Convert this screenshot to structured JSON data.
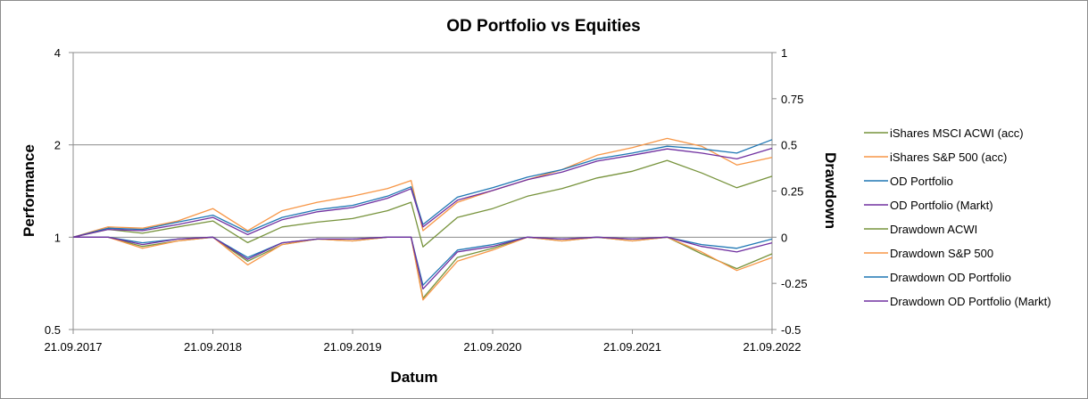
{
  "chart_data": {
    "type": "line",
    "title": "OD Portfolio vs Equities",
    "xlabel": "Datum",
    "ylabel": "Performance",
    "y2label": "Drawdown",
    "y_scale": "log",
    "ylim": [
      0.5,
      4
    ],
    "y_ticks": [
      "0.5",
      "1",
      "2",
      "4"
    ],
    "y2lim": [
      -0.5,
      1
    ],
    "y2_ticks": [
      "-0.5",
      "-0.25",
      "0",
      "0.25",
      "0.5",
      "0.75",
      "1"
    ],
    "x_ticks": [
      "21.09.2017",
      "21.09.2018",
      "21.09.2019",
      "21.09.2020",
      "21.09.2021",
      "21.09.2022"
    ],
    "gridlines": "horizontal at major performance ticks",
    "legend_position": "right",
    "series": [
      {
        "name": "iShares MSCI ACWI (acc)",
        "axis": "Performance",
        "color": "#77933c",
        "x": [
          "21.09.2017",
          "21.12.2017",
          "21.03.2018",
          "21.06.2018",
          "21.09.2018",
          "21.12.2018",
          "21.03.2019",
          "21.06.2019",
          "21.09.2019",
          "21.12.2019",
          "21.02.2020",
          "23.03.2020",
          "21.06.2020",
          "21.09.2020",
          "21.12.2020",
          "21.03.2021",
          "21.06.2021",
          "21.09.2021",
          "21.12.2021",
          "21.03.2022",
          "21.06.2022",
          "21.09.2022"
        ],
        "y": [
          1.0,
          1.06,
          1.03,
          1.08,
          1.13,
          0.96,
          1.08,
          1.12,
          1.15,
          1.22,
          1.3,
          0.93,
          1.16,
          1.24,
          1.36,
          1.44,
          1.56,
          1.64,
          1.78,
          1.62,
          1.45,
          1.58
        ]
      },
      {
        "name": "iShares S&P 500 (acc)",
        "axis": "Performance",
        "color": "#f79646",
        "x": [
          "21.09.2017",
          "21.12.2017",
          "21.03.2018",
          "21.06.2018",
          "21.09.2018",
          "21.12.2018",
          "21.03.2019",
          "21.06.2019",
          "21.09.2019",
          "21.12.2019",
          "21.02.2020",
          "23.03.2020",
          "21.06.2020",
          "21.09.2020",
          "21.12.2020",
          "21.03.2021",
          "21.06.2021",
          "21.09.2021",
          "21.12.2021",
          "21.03.2022",
          "21.06.2022",
          "21.09.2022"
        ],
        "y": [
          1.0,
          1.08,
          1.07,
          1.13,
          1.24,
          1.05,
          1.22,
          1.3,
          1.36,
          1.44,
          1.53,
          1.05,
          1.3,
          1.42,
          1.54,
          1.66,
          1.85,
          1.96,
          2.1,
          1.98,
          1.72,
          1.82
        ]
      },
      {
        "name": "OD Portfolio",
        "axis": "Performance",
        "color": "#1f77b4",
        "x": [
          "21.09.2017",
          "21.12.2017",
          "21.03.2018",
          "21.06.2018",
          "21.09.2018",
          "21.12.2018",
          "21.03.2019",
          "21.06.2019",
          "21.09.2019",
          "21.12.2019",
          "21.02.2020",
          "23.03.2020",
          "21.06.2020",
          "21.09.2020",
          "21.12.2020",
          "21.03.2021",
          "21.06.2021",
          "21.09.2021",
          "21.12.2021",
          "21.03.2022",
          "21.06.2022",
          "21.09.2022"
        ],
        "y": [
          1.0,
          1.07,
          1.06,
          1.12,
          1.18,
          1.04,
          1.16,
          1.23,
          1.27,
          1.36,
          1.46,
          1.1,
          1.35,
          1.45,
          1.57,
          1.66,
          1.8,
          1.88,
          1.98,
          1.94,
          1.88,
          2.08
        ]
      },
      {
        "name": "OD Portfolio (Markt)",
        "axis": "Performance",
        "color": "#7030a0",
        "x": [
          "21.09.2017",
          "21.12.2017",
          "21.03.2018",
          "21.06.2018",
          "21.09.2018",
          "21.12.2018",
          "21.03.2019",
          "21.06.2019",
          "21.09.2019",
          "21.12.2019",
          "21.02.2020",
          "23.03.2020",
          "21.06.2020",
          "21.09.2020",
          "21.12.2020",
          "21.03.2021",
          "21.06.2021",
          "21.09.2021",
          "21.12.2021",
          "21.03.2022",
          "21.06.2022",
          "21.09.2022"
        ],
        "y": [
          1.0,
          1.06,
          1.05,
          1.1,
          1.16,
          1.02,
          1.14,
          1.21,
          1.25,
          1.34,
          1.44,
          1.08,
          1.32,
          1.42,
          1.54,
          1.63,
          1.77,
          1.85,
          1.94,
          1.88,
          1.8,
          1.95
        ]
      },
      {
        "name": "Drawdown ACWI",
        "axis": "Drawdown",
        "color": "#77933c",
        "x": [
          "21.09.2017",
          "21.12.2017",
          "21.03.2018",
          "21.06.2018",
          "21.09.2018",
          "21.12.2018",
          "21.03.2019",
          "21.06.2019",
          "21.09.2019",
          "21.12.2019",
          "21.02.2020",
          "23.03.2020",
          "21.06.2020",
          "21.09.2020",
          "21.12.2020",
          "21.03.2021",
          "21.06.2021",
          "21.09.2021",
          "21.12.2021",
          "21.03.2022",
          "21.06.2022",
          "21.09.2022"
        ],
        "y": [
          0,
          0,
          -0.05,
          -0.02,
          0,
          -0.13,
          -0.04,
          -0.01,
          -0.02,
          0,
          0,
          -0.33,
          -0.11,
          -0.06,
          0,
          -0.02,
          0,
          -0.02,
          0,
          -0.09,
          -0.17,
          -0.09
        ]
      },
      {
        "name": "Drawdown S&P 500",
        "axis": "Drawdown",
        "color": "#f79646",
        "x": [
          "21.09.2017",
          "21.12.2017",
          "21.03.2018",
          "21.06.2018",
          "21.09.2018",
          "21.12.2018",
          "21.03.2019",
          "21.06.2019",
          "21.09.2019",
          "21.12.2019",
          "21.02.2020",
          "23.03.2020",
          "21.06.2020",
          "21.09.2020",
          "21.12.2020",
          "21.03.2021",
          "21.06.2021",
          "21.09.2021",
          "21.12.2021",
          "21.03.2022",
          "21.06.2022",
          "21.09.2022"
        ],
        "y": [
          0,
          0,
          -0.06,
          -0.02,
          0,
          -0.15,
          -0.04,
          -0.01,
          -0.02,
          0,
          0,
          -0.34,
          -0.13,
          -0.07,
          0,
          -0.02,
          0,
          -0.02,
          0,
          -0.08,
          -0.18,
          -0.11
        ]
      },
      {
        "name": "Drawdown OD Portfolio",
        "axis": "Drawdown",
        "color": "#1f77b4",
        "x": [
          "21.09.2017",
          "21.12.2017",
          "21.03.2018",
          "21.06.2018",
          "21.09.2018",
          "21.12.2018",
          "21.03.2019",
          "21.06.2019",
          "21.09.2019",
          "21.12.2019",
          "21.02.2020",
          "23.03.2020",
          "21.06.2020",
          "21.09.2020",
          "21.12.2020",
          "21.03.2021",
          "21.06.2021",
          "21.09.2021",
          "21.12.2021",
          "21.03.2022",
          "21.06.2022",
          "21.09.2022"
        ],
        "y": [
          0,
          0,
          -0.03,
          -0.01,
          0,
          -0.11,
          -0.03,
          -0.01,
          -0.01,
          0,
          0,
          -0.26,
          -0.07,
          -0.04,
          0,
          -0.01,
          0,
          -0.01,
          0,
          -0.04,
          -0.06,
          -0.01
        ]
      },
      {
        "name": "Drawdown OD Portfolio (Markt)",
        "axis": "Drawdown",
        "color": "#7030a0",
        "x": [
          "21.09.2017",
          "21.12.2017",
          "21.03.2018",
          "21.06.2018",
          "21.09.2018",
          "21.12.2018",
          "21.03.2019",
          "21.06.2019",
          "21.09.2019",
          "21.12.2019",
          "21.02.2020",
          "23.03.2020",
          "21.06.2020",
          "21.09.2020",
          "21.12.2020",
          "21.03.2021",
          "21.06.2021",
          "21.09.2021",
          "21.12.2021",
          "21.03.2022",
          "21.06.2022",
          "21.09.2022"
        ],
        "y": [
          0,
          0,
          -0.04,
          -0.01,
          0,
          -0.12,
          -0.03,
          -0.01,
          -0.01,
          0,
          0,
          -0.28,
          -0.08,
          -0.05,
          0,
          -0.01,
          0,
          -0.01,
          0,
          -0.05,
          -0.08,
          -0.03
        ]
      }
    ]
  }
}
